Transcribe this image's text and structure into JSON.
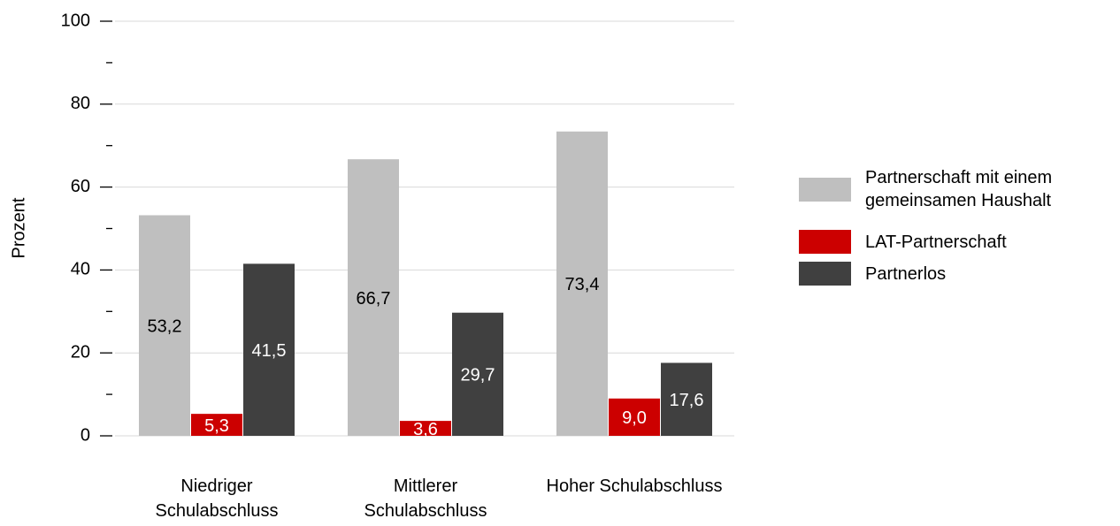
{
  "chart_data": {
    "type": "bar",
    "y_label": "Prozent",
    "categories": [
      "Niedriger Schulabschluss",
      "Mittlerer Schulabschluss",
      "Hoher Schulabschluss"
    ],
    "series": [
      {
        "name": "Partnerschaft mit einem gemeinsamen Haushalt",
        "color": "#bfbfbf",
        "values": [
          53.2,
          66.7,
          73.4
        ],
        "value_labels": [
          "53,2",
          "66,7",
          "73,4"
        ]
      },
      {
        "name": "LAT-Partnerschaft",
        "color": "#cc0000",
        "values": [
          5.3,
          3.6,
          9.0
        ],
        "value_labels": [
          "5,3",
          "3,6",
          "9,0"
        ]
      },
      {
        "name": "Partnerlos",
        "color": "#404040",
        "values": [
          41.5,
          29.7,
          17.6
        ],
        "value_labels": [
          "41,5",
          "29,7",
          "17,6"
        ]
      }
    ],
    "ylim": [
      0,
      100
    ],
    "yticks": [
      0,
      20,
      40,
      60,
      80,
      100
    ],
    "minor_yticks": [
      10,
      30,
      50,
      70,
      90
    ],
    "grid": true,
    "legend": "right"
  }
}
